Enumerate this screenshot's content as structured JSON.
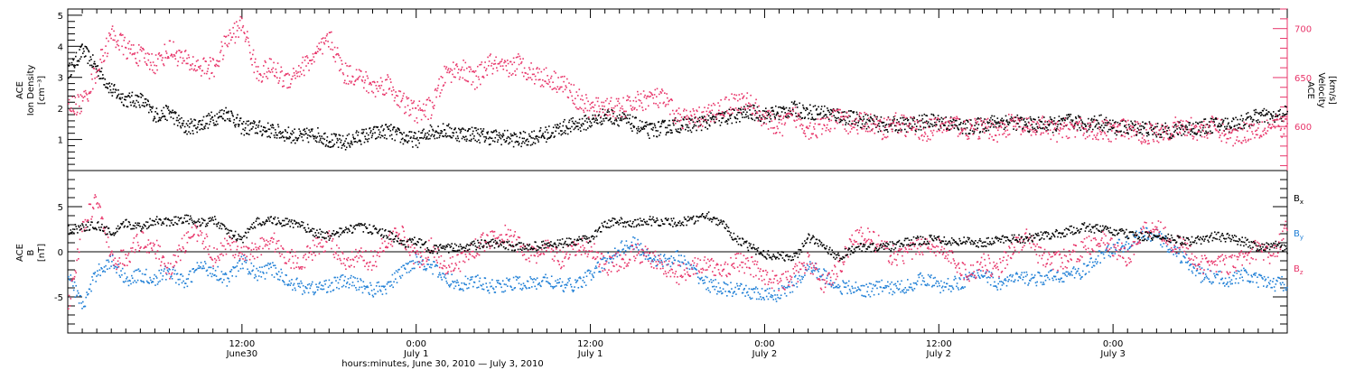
{
  "colors": {
    "density": "#000000",
    "velocity": "#e8356a",
    "bx": "#000000",
    "by": "#1f7fd6",
    "bz": "#e8356a",
    "axis": "#000000"
  },
  "chart_data": [
    {
      "type": "scatter",
      "panel": "top",
      "ylabel_lines": [
        "ACE",
        "Ion Density",
        "[cm⁻³]"
      ],
      "y2label_lines": [
        "ACE",
        "Velocity",
        "[km/s]"
      ],
      "ylim": [
        0,
        5.2
      ],
      "y_ticks": [
        1,
        2,
        3,
        4,
        5
      ],
      "y2lim": [
        555,
        720
      ],
      "y2_ticks": [
        600,
        650,
        700
      ],
      "xlim_hours": [
        0,
        84
      ],
      "series": [
        {
          "name": "Ion Density",
          "axis": "left",
          "color": "#000000",
          "x_hours": [
            0,
            1,
            2,
            3,
            4,
            5,
            6,
            7,
            8,
            9,
            10,
            11,
            12,
            13,
            14,
            15,
            16,
            17,
            18,
            19,
            20,
            21,
            22,
            23,
            24,
            25,
            26,
            27,
            28,
            29,
            30,
            31,
            32,
            33,
            34,
            35,
            36,
            37,
            38,
            39,
            40,
            41,
            42,
            43,
            44,
            45,
            46,
            47,
            48,
            49,
            50,
            51,
            52,
            53,
            54,
            55,
            56,
            57,
            58,
            59,
            60,
            61,
            62,
            63,
            64,
            65,
            66,
            67,
            68,
            69,
            70,
            71,
            72,
            73,
            74,
            75,
            76,
            77,
            78,
            79,
            80,
            81,
            82,
            83,
            84
          ],
          "values": [
            3.2,
            3.9,
            3.3,
            2.6,
            2.3,
            2.3,
            1.8,
            1.9,
            1.4,
            1.5,
            1.7,
            1.9,
            1.4,
            1.4,
            1.3,
            1.2,
            1.1,
            1.2,
            1.0,
            0.9,
            1.1,
            1.2,
            1.3,
            1.1,
            1.0,
            1.3,
            1.3,
            1.2,
            1.2,
            1.1,
            1.1,
            1.0,
            1.1,
            1.2,
            1.4,
            1.5,
            1.6,
            1.8,
            1.7,
            1.5,
            1.3,
            1.4,
            1.5,
            1.5,
            1.6,
            1.7,
            1.8,
            1.9,
            1.8,
            1.9,
            2.0,
            1.9,
            1.9,
            1.8,
            1.7,
            1.6,
            1.5,
            1.5,
            1.5,
            1.6,
            1.6,
            1.5,
            1.4,
            1.5,
            1.6,
            1.6,
            1.5,
            1.5,
            1.5,
            1.6,
            1.5,
            1.6,
            1.4,
            1.4,
            1.4,
            1.3,
            1.3,
            1.4,
            1.4,
            1.5,
            1.5,
            1.6,
            1.8,
            1.7,
            1.9
          ]
        },
        {
          "name": "Velocity",
          "axis": "right",
          "color": "#e8356a",
          "x_hours": [
            0,
            1,
            2,
            3,
            4,
            5,
            6,
            7,
            8,
            9,
            10,
            11,
            12,
            13,
            14,
            15,
            16,
            17,
            18,
            19,
            20,
            21,
            22,
            23,
            24,
            25,
            26,
            27,
            28,
            29,
            30,
            31,
            32,
            33,
            34,
            35,
            36,
            37,
            38,
            39,
            40,
            41,
            42,
            43,
            44,
            45,
            46,
            47,
            48,
            49,
            50,
            51,
            52,
            53,
            54,
            55,
            56,
            57,
            58,
            59,
            60,
            61,
            62,
            63,
            64,
            65,
            66,
            67,
            68,
            69,
            70,
            71,
            72,
            73,
            74,
            75,
            76,
            77,
            78,
            79,
            80,
            81,
            82,
            83,
            84
          ],
          "values": [
            620,
            625,
            660,
            695,
            680,
            672,
            665,
            680,
            668,
            662,
            660,
            690,
            705,
            655,
            660,
            648,
            660,
            672,
            690,
            655,
            652,
            640,
            645,
            625,
            615,
            620,
            655,
            660,
            648,
            665,
            658,
            665,
            655,
            650,
            645,
            630,
            618,
            622,
            618,
            625,
            630,
            628,
            610,
            608,
            612,
            620,
            626,
            624,
            608,
            600,
            612,
            598,
            600,
            610,
            602,
            606,
            598,
            605,
            600,
            596,
            601,
            603,
            597,
            599,
            596,
            604,
            598,
            601,
            595,
            600,
            598,
            597,
            596,
            598,
            593,
            595,
            599,
            600,
            597,
            601,
            590,
            595,
            599,
            602,
            600
          ]
        }
      ]
    },
    {
      "type": "scatter",
      "panel": "bottom",
      "ylabel_lines": [
        "ACE",
        "B",
        "[nT]"
      ],
      "ylim": [
        -9,
        9
      ],
      "y_ticks": [
        -5,
        0,
        5
      ],
      "legend": [
        "Bx",
        "By",
        "Bz"
      ],
      "legend_position": "right",
      "xlim_hours": [
        0,
        84
      ],
      "series": [
        {
          "name": "Bx",
          "color": "#000000",
          "x_hours": [
            0,
            1,
            2,
            3,
            4,
            5,
            6,
            7,
            8,
            9,
            10,
            11,
            12,
            13,
            14,
            15,
            16,
            17,
            18,
            19,
            20,
            21,
            22,
            23,
            24,
            25,
            26,
            27,
            28,
            29,
            30,
            31,
            32,
            33,
            34,
            35,
            36,
            37,
            38,
            39,
            40,
            41,
            42,
            43,
            44,
            45,
            46,
            47,
            48,
            49,
            50,
            51,
            52,
            53,
            54,
            55,
            56,
            57,
            58,
            59,
            60,
            61,
            62,
            63,
            64,
            65,
            66,
            67,
            68,
            69,
            70,
            71,
            72,
            73,
            74,
            75,
            76,
            77,
            78,
            79,
            80,
            81,
            82,
            83,
            84
          ],
          "values": [
            2.5,
            2.8,
            3.0,
            2.0,
            3.2,
            2.8,
            3.6,
            3.4,
            3.8,
            3.2,
            3.6,
            2.2,
            1.5,
            3.4,
            3.6,
            3.3,
            3.0,
            2.2,
            1.8,
            2.4,
            2.8,
            2.5,
            2.0,
            1.0,
            1.2,
            0.4,
            0.4,
            0.6,
            0.8,
            1.0,
            0.8,
            0.6,
            0.7,
            0.8,
            1.0,
            1.2,
            1.5,
            3.2,
            3.4,
            3.2,
            3.5,
            3.4,
            3.3,
            3.6,
            4.2,
            3.2,
            1.5,
            0.5,
            -0.2,
            -0.4,
            -0.6,
            1.6,
            0.8,
            -0.5,
            0.4,
            0.6,
            0.5,
            0.8,
            1.2,
            1.4,
            1.5,
            1.2,
            1.3,
            1.0,
            1.4,
            1.6,
            1.5,
            1.8,
            2.0,
            2.4,
            2.8,
            2.6,
            2.3,
            2.0,
            1.8,
            1.7,
            1.5,
            1.2,
            1.4,
            1.8,
            1.6,
            1.2,
            0.6,
            0.8,
            0.4
          ]
        },
        {
          "name": "By",
          "color": "#1f7fd6",
          "x_hours": [
            0,
            1,
            2,
            3,
            4,
            5,
            6,
            7,
            8,
            9,
            10,
            11,
            12,
            13,
            14,
            15,
            16,
            17,
            18,
            19,
            20,
            21,
            22,
            23,
            24,
            25,
            26,
            27,
            28,
            29,
            30,
            31,
            32,
            33,
            34,
            35,
            36,
            37,
            38,
            39,
            40,
            41,
            42,
            43,
            44,
            45,
            46,
            47,
            48,
            49,
            50,
            51,
            52,
            53,
            54,
            55,
            56,
            57,
            58,
            59,
            60,
            61,
            62,
            63,
            64,
            65,
            66,
            67,
            68,
            69,
            70,
            71,
            72,
            73,
            74,
            75,
            76,
            77,
            78,
            79,
            80,
            81,
            82,
            83,
            84
          ],
          "values": [
            -2.5,
            -6.0,
            -2.0,
            -1.0,
            -3.0,
            -2.5,
            -3.0,
            -2.0,
            -3.5,
            -1.5,
            -2.0,
            -3.0,
            -1.0,
            -2.5,
            -1.8,
            -3.0,
            -3.8,
            -4.0,
            -3.6,
            -3.2,
            -3.5,
            -4.2,
            -3.8,
            -2.0,
            -0.8,
            -1.5,
            -3.0,
            -3.5,
            -3.2,
            -3.8,
            -3.6,
            -3.4,
            -3.5,
            -3.0,
            -3.8,
            -3.5,
            -2.5,
            -1.0,
            0.5,
            1.0,
            -0.5,
            -1.0,
            -0.5,
            -2.0,
            -3.5,
            -4.0,
            -4.2,
            -4.4,
            -4.8,
            -4.6,
            -3.5,
            -1.5,
            -2.5,
            -3.8,
            -4.0,
            -4.2,
            -3.8,
            -4.0,
            -3.6,
            -2.8,
            -3.8,
            -3.5,
            -3.0,
            -2.2,
            -3.5,
            -3.0,
            -2.8,
            -3.0,
            -2.6,
            -2.5,
            -2.0,
            -0.5,
            0.5,
            1.0,
            2.0,
            1.8,
            0.5,
            -1.0,
            -2.5,
            -2.8,
            -3.0,
            -2.5,
            -3.2,
            -3.5,
            -3.4
          ]
        },
        {
          "name": "Bz",
          "color": "#e8356a",
          "x_hours": [
            0,
            1,
            2,
            3,
            4,
            5,
            6,
            7,
            8,
            9,
            10,
            11,
            12,
            13,
            14,
            15,
            16,
            17,
            18,
            19,
            20,
            21,
            22,
            23,
            24,
            25,
            26,
            27,
            28,
            29,
            30,
            31,
            32,
            33,
            34,
            35,
            36,
            37,
            38,
            39,
            40,
            41,
            42,
            43,
            44,
            45,
            46,
            47,
            48,
            49,
            50,
            51,
            52,
            53,
            54,
            55,
            56,
            57,
            58,
            59,
            60,
            61,
            62,
            63,
            64,
            65,
            66,
            67,
            68,
            69,
            70,
            71,
            72,
            73,
            74,
            75,
            76,
            77,
            78,
            79,
            80,
            81,
            82,
            83,
            84
          ],
          "values": [
            -6.0,
            3.0,
            6.0,
            -1.0,
            -0.5,
            1.5,
            0.5,
            -2.0,
            1.0,
            2.5,
            -0.5,
            1.0,
            -0.5,
            0.5,
            1.5,
            -0.5,
            -1.0,
            0.5,
            1.5,
            -1.5,
            -0.5,
            -1.0,
            1.5,
            2.0,
            -0.8,
            0.5,
            -1.5,
            -1.0,
            0.5,
            1.5,
            2.0,
            1.0,
            -0.5,
            0.5,
            -1.0,
            0.5,
            0.5,
            -1.5,
            -1.0,
            0.0,
            -0.5,
            -1.5,
            -2.5,
            -1.5,
            -1.5,
            -2.0,
            -1.0,
            -1.5,
            -2.5,
            -3.5,
            -2.5,
            -1.0,
            -3.5,
            -2.0,
            1.5,
            2.0,
            0.5,
            -0.5,
            0.0,
            1.0,
            0.5,
            -1.0,
            -2.5,
            -1.0,
            -2.0,
            0.5,
            1.5,
            -0.5,
            -1.0,
            -0.5,
            0.5,
            1.5,
            0.5,
            -0.5,
            2.5,
            3.0,
            1.0,
            0.5,
            -1.5,
            -1.0,
            -1.5,
            -0.5,
            0.5,
            -0.5,
            3.5
          ]
        }
      ]
    }
  ],
  "x_axis": {
    "ticks": [
      {
        "hours": 12,
        "time": "12:00",
        "date": "June30"
      },
      {
        "hours": 24,
        "time": "0:00",
        "date": "July 1"
      },
      {
        "hours": 36,
        "time": "12:00",
        "date": "July 1"
      },
      {
        "hours": 48,
        "time": "0:00",
        "date": "July 2"
      },
      {
        "hours": 60,
        "time": "12:00",
        "date": "July 2"
      },
      {
        "hours": 72,
        "time": "0:00",
        "date": "July 3"
      }
    ],
    "label": "hours:minutes, June 30, 2010 — July  3, 2010"
  },
  "legend_labels": {
    "bx": {
      "base": "B",
      "sub": "x"
    },
    "by": {
      "base": "B",
      "sub": "y"
    },
    "bz": {
      "base": "B",
      "sub": "z"
    }
  }
}
